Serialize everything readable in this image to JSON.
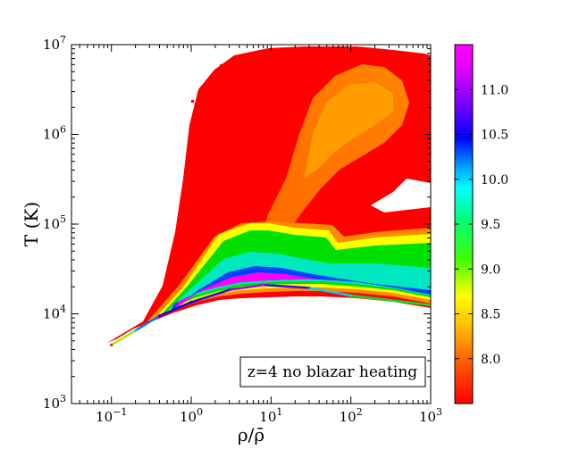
{
  "chart_data": {
    "type": "heatmap",
    "title": "",
    "xlabel": "ρ/ρ̄",
    "ylabel": "T (K)",
    "x_scale": "log",
    "y_scale": "log",
    "xlim": [
      0.0316,
      1000
    ],
    "ylim": [
      1000,
      10000000
    ],
    "x_ticks": [
      {
        "value": 0.1,
        "base": "10",
        "exp": "−1"
      },
      {
        "value": 1,
        "base": "10",
        "exp": "0"
      },
      {
        "value": 10,
        "base": "10",
        "exp": "1"
      },
      {
        "value": 100,
        "base": "10",
        "exp": "2"
      },
      {
        "value": 1000,
        "base": "10",
        "exp": "3"
      }
    ],
    "y_ticks": [
      {
        "value": 1000,
        "base": "10",
        "exp": "3"
      },
      {
        "value": 10000,
        "base": "10",
        "exp": "4"
      },
      {
        "value": 100000,
        "base": "10",
        "exp": "5"
      },
      {
        "value": 1000000,
        "base": "10",
        "exp": "6"
      },
      {
        "value": 10000000,
        "base": "10",
        "exp": "7"
      }
    ],
    "colorbar": {
      "range": [
        7.5,
        11.5
      ],
      "ticks": [
        "8.0",
        "8.5",
        "9.0",
        "9.5",
        "10.0",
        "10.5",
        "11.0"
      ],
      "tick_values": [
        8.0,
        8.5,
        9.0,
        9.5,
        10.0,
        10.5,
        11.0
      ],
      "colormap": [
        "#ff0000",
        "#ffa000",
        "#ffff00",
        "#00ff00",
        "#00ffff",
        "#0000ff",
        "#a000ff",
        "#ff00ff"
      ]
    },
    "grid": false,
    "annotation": "z=4 no blazar heating",
    "annotation_position": "bottom-right",
    "features": {
      "igm_ridge": [
        {
          "x": 0.1,
          "y": 4500,
          "level": 7.6
        },
        {
          "x": 0.2,
          "y": 6500,
          "level": 9.8
        },
        {
          "x": 0.4,
          "y": 9500,
          "level": 10.6
        },
        {
          "x": 1,
          "y": 13500,
          "level": 10.5
        },
        {
          "x": 3,
          "y": 18500,
          "level": 10.8
        },
        {
          "x": 8,
          "y": 21000,
          "level": 11.2
        },
        {
          "x": 30,
          "y": 19500,
          "level": 10.2
        },
        {
          "x": 100,
          "y": 16000,
          "level": 9.4
        },
        {
          "x": 1000,
          "y": 12500,
          "level": 8.8
        }
      ],
      "hot_plume_level": 7.9,
      "warm_halo_level": 7.6
    }
  }
}
